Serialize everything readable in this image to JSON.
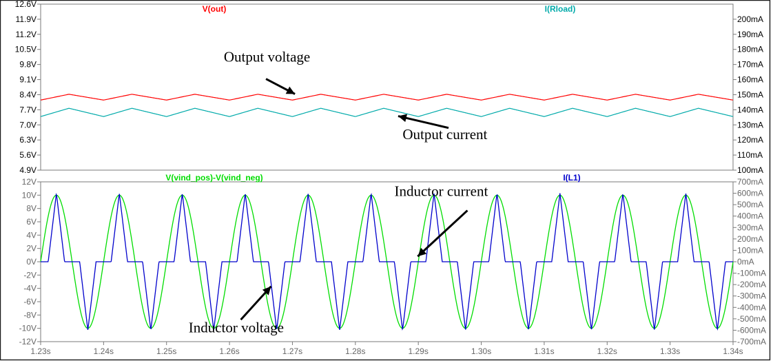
{
  "chart_data": [
    {
      "type": "line",
      "panel": "top",
      "xlim": [
        1.23,
        1.34
      ],
      "x_unit": "s",
      "left_axis": {
        "ticks": [
          {
            "v": 4.9,
            "label": "4.9V"
          },
          {
            "v": 5.6,
            "label": "5.6V"
          },
          {
            "v": 6.3,
            "label": "6.3V"
          },
          {
            "v": 7.0,
            "label": "7.0V"
          },
          {
            "v": 7.7,
            "label": "7.7V"
          },
          {
            "v": 8.4,
            "label": "8.4V"
          },
          {
            "v": 9.1,
            "label": "9.1V"
          },
          {
            "v": 9.8,
            "label": "9.8V"
          },
          {
            "v": 10.5,
            "label": "10.5V"
          },
          {
            "v": 11.2,
            "label": "11.2V"
          },
          {
            "v": 11.9,
            "label": "11.9V"
          },
          {
            "v": 12.6,
            "label": "12.6V"
          }
        ],
        "lim": [
          4.9,
          12.6
        ]
      },
      "right_axis": {
        "ticks": [
          {
            "v": 100,
            "label": "100mA"
          },
          {
            "v": 110,
            "label": "110mA"
          },
          {
            "v": 120,
            "label": "120mA"
          },
          {
            "v": 130,
            "label": "130mA"
          },
          {
            "v": 140,
            "label": "140mA"
          },
          {
            "v": 150,
            "label": "150mA"
          },
          {
            "v": 160,
            "label": "160mA"
          },
          {
            "v": 170,
            "label": "170mA"
          },
          {
            "v": 180,
            "label": "180mA"
          },
          {
            "v": 190,
            "label": "190mA"
          },
          {
            "v": 200,
            "label": "200mA"
          }
        ],
        "lim": [
          100,
          210
        ]
      },
      "series": [
        {
          "name": "V(out)",
          "axis": "left",
          "color": "#ff0000",
          "shape": "sawtooth",
          "period": 0.01,
          "phase": 0.0,
          "min": 8.15,
          "max": 8.42
        },
        {
          "name": "I(Rload)",
          "axis": "right",
          "color": "#00aaaa",
          "shape": "sawtooth",
          "period": 0.01,
          "phase": 0.0,
          "min": 135.5,
          "max": 141.0
        }
      ],
      "annotations": [
        {
          "text": "Output voltage",
          "text_at": [
            1.2591,
            9.93
          ],
          "arrow_from": [
            1.2658,
            9.13
          ],
          "arrow_to": [
            1.2704,
            8.43
          ]
        },
        {
          "text": "Output current",
          "text_at": [
            1.2875,
            120.5
          ],
          "arrow_from": [
            1.2948,
            128.0
          ],
          "arrow_to": [
            1.2868,
            135.8
          ]
        }
      ]
    },
    {
      "type": "line",
      "panel": "bottom",
      "xlim": [
        1.23,
        1.34
      ],
      "x_unit": "s",
      "x_ticks": [
        {
          "v": 1.23,
          "label": "1.23s"
        },
        {
          "v": 1.24,
          "label": "1.24s"
        },
        {
          "v": 1.25,
          "label": "1.25s"
        },
        {
          "v": 1.26,
          "label": "1.26s"
        },
        {
          "v": 1.27,
          "label": "1.27s"
        },
        {
          "v": 1.28,
          "label": "1.28s"
        },
        {
          "v": 1.29,
          "label": "1.29s"
        },
        {
          "v": 1.3,
          "label": "1.30s"
        },
        {
          "v": 1.31,
          "label": "1.31s"
        },
        {
          "v": 1.32,
          "label": "1.32s"
        },
        {
          "v": 1.33,
          "label": "1.33s"
        },
        {
          "v": 1.34,
          "label": "1.34s"
        }
      ],
      "left_axis": {
        "ticks": [
          {
            "v": -12,
            "label": "-12V"
          },
          {
            "v": -10,
            "label": "-10V"
          },
          {
            "v": -8,
            "label": "-8V"
          },
          {
            "v": -6,
            "label": "-6V"
          },
          {
            "v": -4,
            "label": "-4V"
          },
          {
            "v": -2,
            "label": "-2V"
          },
          {
            "v": 0,
            "label": "0V"
          },
          {
            "v": 2,
            "label": "2V"
          },
          {
            "v": 4,
            "label": "4V"
          },
          {
            "v": 6,
            "label": "6V"
          },
          {
            "v": 8,
            "label": "8V"
          },
          {
            "v": 10,
            "label": "10V"
          },
          {
            "v": 12,
            "label": "12V"
          }
        ],
        "lim": [
          -12,
          12
        ]
      },
      "right_axis": {
        "ticks": [
          {
            "v": -700,
            "label": "-700mA"
          },
          {
            "v": -600,
            "label": "-600mA"
          },
          {
            "v": -500,
            "label": "-500mA"
          },
          {
            "v": -400,
            "label": "-400mA"
          },
          {
            "v": -300,
            "label": "-300mA"
          },
          {
            "v": -200,
            "label": "-200mA"
          },
          {
            "v": -100,
            "label": "-100mA"
          },
          {
            "v": 0,
            "label": "0mA"
          },
          {
            "v": 100,
            "label": "100mA"
          },
          {
            "v": 200,
            "label": "200mA"
          },
          {
            "v": 300,
            "label": "300mA"
          },
          {
            "v": 400,
            "label": "400mA"
          },
          {
            "v": 500,
            "label": "500mA"
          },
          {
            "v": 600,
            "label": "600mA"
          },
          {
            "v": 700,
            "label": "700mA"
          }
        ],
        "lim": [
          -700,
          700
        ]
      },
      "series": [
        {
          "name": "V(vind_pos)-V(vind_neg)",
          "axis": "left",
          "color": "#00dd00",
          "shape": "sine",
          "period": 0.01,
          "amplitude": 10,
          "peak_at": 1.2325
        },
        {
          "name": "I(L1)",
          "axis": "right",
          "color": "#0000cc",
          "shape": "pulse",
          "period": 0.01,
          "peak_at": 1.2325,
          "peak": 600,
          "trough": -600,
          "conduction_halfwidth": 0.0013
        }
      ],
      "annotations": [
        {
          "text": "Inductor current",
          "text_at": [
            1.2862,
            9.9
          ],
          "arrow_from": [
            1.2978,
            7.7
          ],
          "arrow_to": [
            1.2899,
            0.8
          ]
        },
        {
          "text": "Inductor voltage",
          "text_at": [
            1.2535,
            -10.6
          ],
          "arrow_from": [
            1.2618,
            -8.7
          ],
          "arrow_to": [
            1.2666,
            -3.7
          ]
        }
      ]
    }
  ],
  "colors": {
    "v_out": "#ff0000",
    "i_rload": "#00aaaa",
    "v_ind": "#00dd00",
    "i_l1": "#0000cc",
    "frame": "#7a7a7a",
    "panel_border": "#1a1a1a"
  }
}
